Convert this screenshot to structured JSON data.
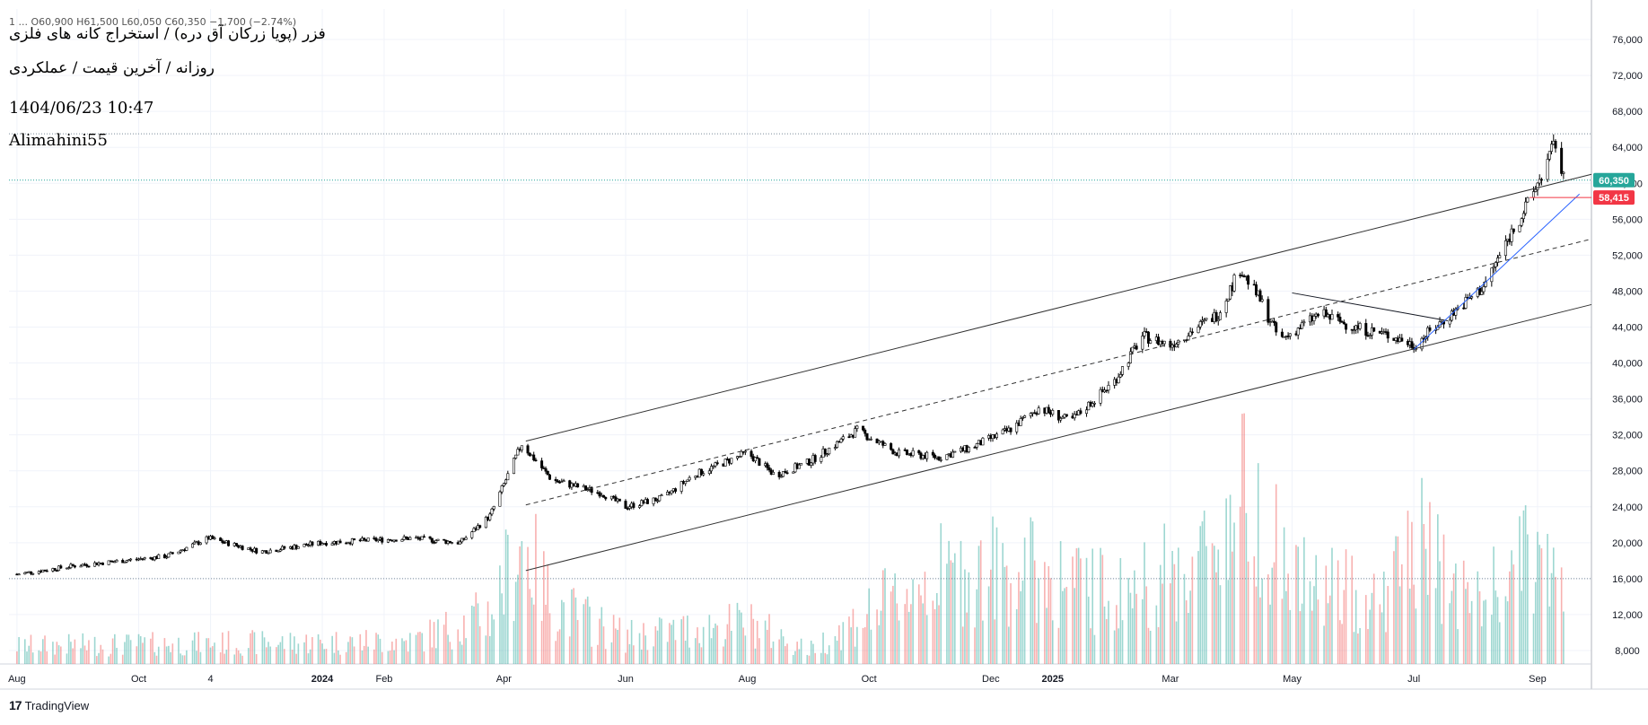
{
  "header": {
    "ohlc": "1  ...  O60,900  H61,500  L60,050  C60,350  −1,700 (−2.74%)",
    "title": "فزر (پویا زرکان آق دره) / استخراج کانه های فلزی",
    "subtitle": "روزانه / آخرین قیمت / عملکردی",
    "datetime": "1404/06/23 10:47",
    "author": "Alimahini55"
  },
  "brand": {
    "name": "TradingView",
    "logo_icon": "tradingview-logo-icon"
  },
  "colors": {
    "up": "#26a69a",
    "down": "#ef5350",
    "trend_blue": "#2962ff",
    "last_price_bg": "#26a69a",
    "level_bg": "#f23645"
  },
  "chart_data": {
    "type": "candlestick",
    "price_axis": {
      "ticks": [
        8000,
        12000,
        16000,
        20000,
        24000,
        28000,
        32000,
        36000,
        40000,
        44000,
        48000,
        52000,
        56000,
        60000,
        64000,
        68000,
        72000,
        76000
      ],
      "tick_labels": [
        "8,000",
        "12,000",
        "16,000",
        "20,000",
        "24,000",
        "28,000",
        "32,000",
        "36,000",
        "40,000",
        "44,000",
        "48,000",
        "52,000",
        "56,000",
        "60,000",
        "64,000",
        "68,000",
        "72,000",
        "76,000"
      ],
      "range": [
        6500,
        79000
      ]
    },
    "time_axis": {
      "labels": [
        "Aug",
        "Oct",
        "4",
        "2024",
        "Feb",
        "Apr",
        "Jun",
        "Aug",
        "Oct",
        "Dec",
        "2025",
        "Mar",
        "May",
        "Jul",
        "Sep"
      ],
      "bold": [
        "2024",
        "2025"
      ]
    },
    "last_price": {
      "value": 60350,
      "label": "60,350"
    },
    "level_line": {
      "value": 58415,
      "label": "58,415"
    },
    "horizontal_dotted": [
      65500,
      16000
    ],
    "price_anchors": [
      [
        "2023-08-01",
        16500
      ],
      [
        "2023-09-01",
        17500
      ],
      [
        "2023-10-15",
        18500
      ],
      [
        "2023-11-05",
        20500
      ],
      [
        "2023-12-01",
        19000
      ],
      [
        "2024-01-01",
        20000
      ],
      [
        "2024-02-15",
        20500
      ],
      [
        "2024-03-10",
        20000
      ],
      [
        "2024-03-25",
        23000
      ],
      [
        "2024-04-10",
        31000
      ],
      [
        "2024-04-25",
        27000
      ],
      [
        "2024-05-20",
        25500
      ],
      [
        "2024-06-01",
        24000
      ],
      [
        "2024-06-20",
        25000
      ],
      [
        "2024-07-05",
        27500
      ],
      [
        "2024-08-01",
        30000
      ],
      [
        "2024-08-15",
        27500
      ],
      [
        "2024-09-01",
        29000
      ],
      [
        "2024-09-25",
        32500
      ],
      [
        "2024-10-15",
        30000
      ],
      [
        "2024-11-05",
        29500
      ],
      [
        "2024-11-20",
        30500
      ],
      [
        "2024-12-10",
        32500
      ],
      [
        "2024-12-25",
        35000
      ],
      [
        "2025-01-10",
        33500
      ],
      [
        "2025-02-01",
        38000
      ],
      [
        "2025-02-15",
        43000
      ],
      [
        "2025-03-01",
        42000
      ],
      [
        "2025-03-25",
        45500
      ],
      [
        "2025-04-05",
        50500
      ],
      [
        "2025-04-15",
        47000
      ],
      [
        "2025-04-25",
        42500
      ],
      [
        "2025-05-15",
        45500
      ],
      [
        "2025-06-01",
        44000
      ],
      [
        "2025-06-20",
        43000
      ],
      [
        "2025-07-01",
        42000
      ],
      [
        "2025-07-20",
        45500
      ],
      [
        "2025-08-05",
        48500
      ],
      [
        "2025-08-20",
        55000
      ],
      [
        "2025-08-28",
        58000
      ],
      [
        "2025-09-05",
        62000
      ],
      [
        "2025-09-10",
        64500
      ],
      [
        "2025-09-14",
        60350
      ]
    ],
    "volume_anchors": [
      [
        "2023-08-01",
        2000
      ],
      [
        "2024-02-15",
        2500
      ],
      [
        "2024-03-25",
        5500
      ],
      [
        "2024-04-10",
        13500
      ],
      [
        "2024-04-25",
        6500
      ],
      [
        "2024-06-01",
        3000
      ],
      [
        "2024-08-01",
        4500
      ],
      [
        "2024-09-01",
        1500
      ],
      [
        "2024-10-01",
        5500
      ],
      [
        "2024-11-01",
        9500
      ],
      [
        "2024-12-15",
        10500
      ],
      [
        "2025-02-01",
        7500
      ],
      [
        "2025-03-15",
        11000
      ],
      [
        "2025-04-10",
        19500
      ],
      [
        "2025-05-01",
        9000
      ],
      [
        "2025-06-15",
        7000
      ],
      [
        "2025-07-01",
        13500
      ],
      [
        "2025-08-01",
        6500
      ],
      [
        "2025-09-01",
        12000
      ],
      [
        "2025-09-14",
        8000
      ]
    ],
    "volume_axis_max": 38000,
    "trendlines": [
      {
        "name": "channel-upper",
        "style": "solid",
        "color": "#333333",
        "from": [
          "2024-04-12",
          31300
        ],
        "to": [
          "2025-09-28",
          61000
        ]
      },
      {
        "name": "channel-middle",
        "style": "dashed",
        "color": "#333333",
        "from": [
          "2024-04-12",
          24200
        ],
        "to": [
          "2025-09-28",
          53800
        ]
      },
      {
        "name": "channel-lower",
        "style": "solid",
        "color": "#333333",
        "from": [
          "2024-04-12",
          16900
        ],
        "to": [
          "2025-09-28",
          46500
        ]
      },
      {
        "name": "resistance",
        "style": "solid",
        "color": "#131722",
        "from": [
          "2025-05-01",
          47800
        ],
        "to": [
          "2025-07-18",
          44700
        ]
      },
      {
        "name": "support",
        "style": "solid",
        "color": "#2962ff",
        "from": [
          "2025-07-01",
          41500
        ],
        "to": [
          "2025-09-22",
          58800
        ]
      }
    ]
  }
}
